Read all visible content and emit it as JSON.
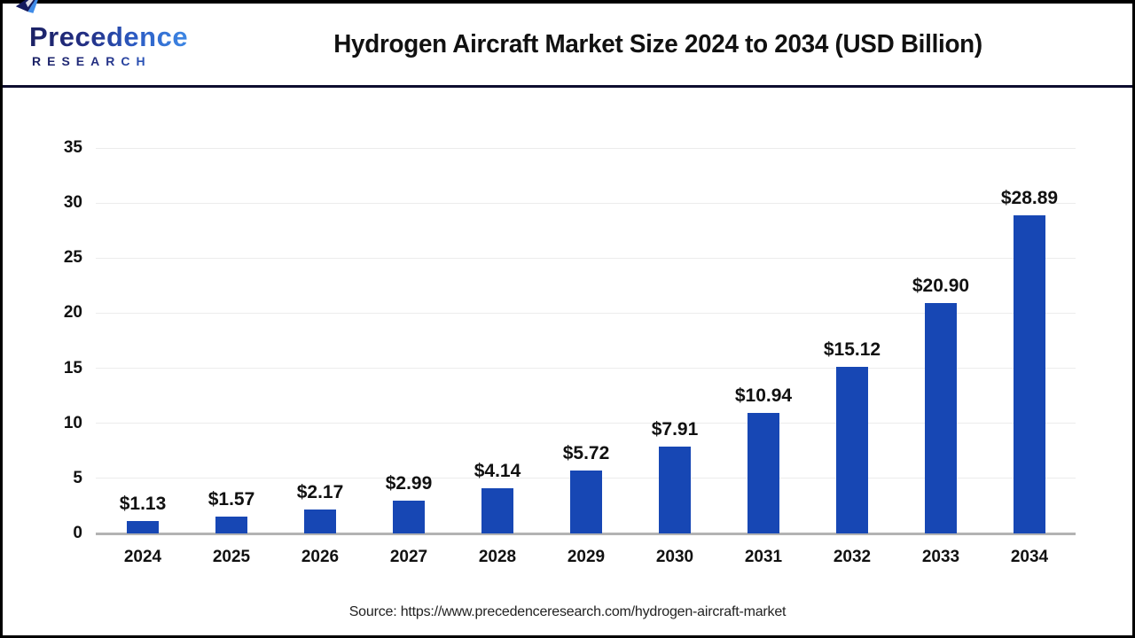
{
  "header": {
    "logo_line1": "Precedence",
    "logo_line2": "RESEARCH",
    "title": "Hydrogen Aircraft Market Size 2024 to 2034 (USD Billion)"
  },
  "chart_data": {
    "type": "bar",
    "title": "Hydrogen Aircraft Market Size 2024 to 2034 (USD Billion)",
    "categories": [
      "2024",
      "2025",
      "2026",
      "2027",
      "2028",
      "2029",
      "2030",
      "2031",
      "2032",
      "2033",
      "2034"
    ],
    "values": [
      1.13,
      1.57,
      2.17,
      2.99,
      4.14,
      5.72,
      7.91,
      10.94,
      15.12,
      20.9,
      28.89
    ],
    "value_labels": [
      "$1.13",
      "$1.57",
      "$2.17",
      "$2.99",
      "$4.14",
      "$5.72",
      "$7.91",
      "$10.94",
      "$15.12",
      "$20.90",
      "$28.89"
    ],
    "xlabel": "",
    "ylabel": "",
    "ylim": [
      0,
      35
    ],
    "yticks": [
      0,
      5,
      10,
      15,
      20,
      25,
      30,
      35
    ],
    "grid": true,
    "legend": "none",
    "bar_color": "#1747B4"
  },
  "footer": {
    "source": "Source: https://www.precedenceresearch.com/hydrogen-aircraft-market"
  },
  "colors": {
    "bar": "#1747B4",
    "header_rule": "#0D0D2E",
    "outer_border": "#000000",
    "gridline": "#ECECEC",
    "axis_line": "#B3B3B3",
    "text": "#111111",
    "logo_navy": "#1B2164",
    "logo_blue": "#3F8CE8"
  }
}
